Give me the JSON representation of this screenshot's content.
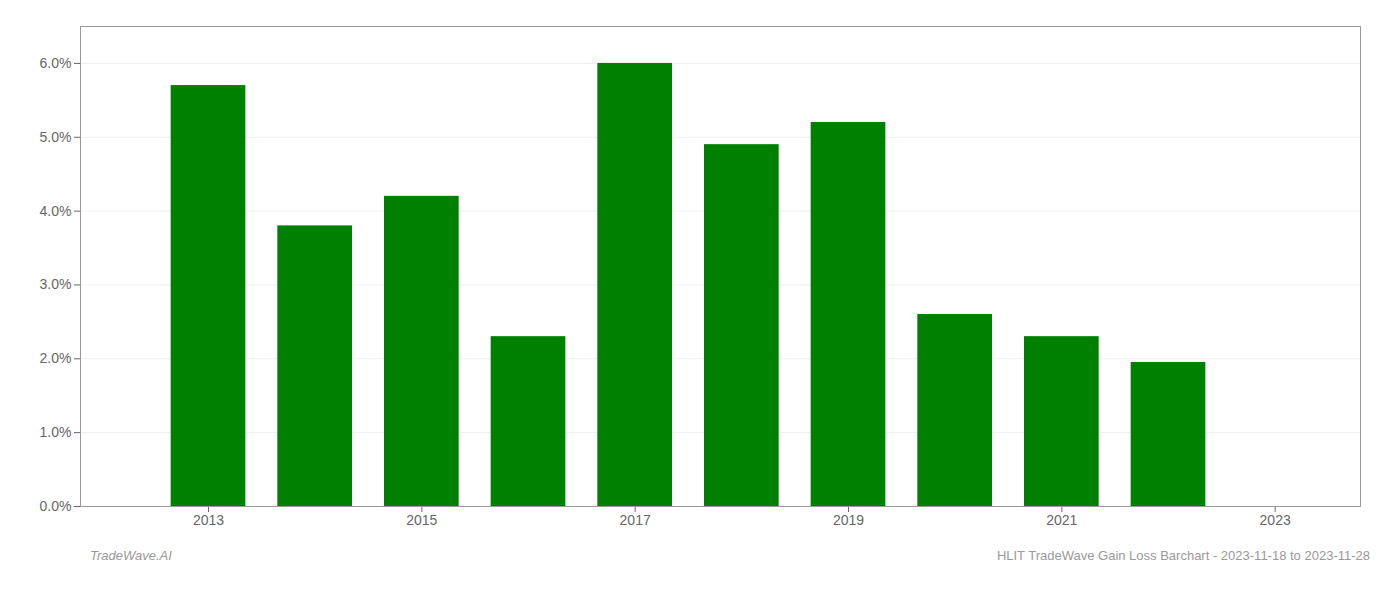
{
  "chart_data": {
    "type": "bar",
    "x": [
      2013,
      2014,
      2015,
      2016,
      2017,
      2018,
      2019,
      2020,
      2021,
      2022
    ],
    "values": [
      0.057,
      0.038,
      0.042,
      0.023,
      0.06,
      0.049,
      0.052,
      0.026,
      0.023,
      0.0195
    ],
    "color": "#008000",
    "xlim": [
      2011.8,
      2023.8
    ],
    "xticks": [
      2013,
      2015,
      2017,
      2019,
      2021,
      2023
    ],
    "ylim": [
      0.0,
      0.065
    ],
    "yticks": [
      {
        "value": 0.0,
        "label": "0.0%"
      },
      {
        "value": 0.01,
        "label": "1.0%"
      },
      {
        "value": 0.02,
        "label": "2.0%"
      },
      {
        "value": 0.03,
        "label": "3.0%"
      },
      {
        "value": 0.04,
        "label": "4.0%"
      },
      {
        "value": 0.05,
        "label": "5.0%"
      },
      {
        "value": 0.06,
        "label": "6.0%"
      }
    ],
    "grid": true,
    "annotations": [
      "TradeWave.AI",
      "HLIT TradeWave Gain Loss Barchart - 2023-11-18 to 2023-11-28"
    ]
  }
}
